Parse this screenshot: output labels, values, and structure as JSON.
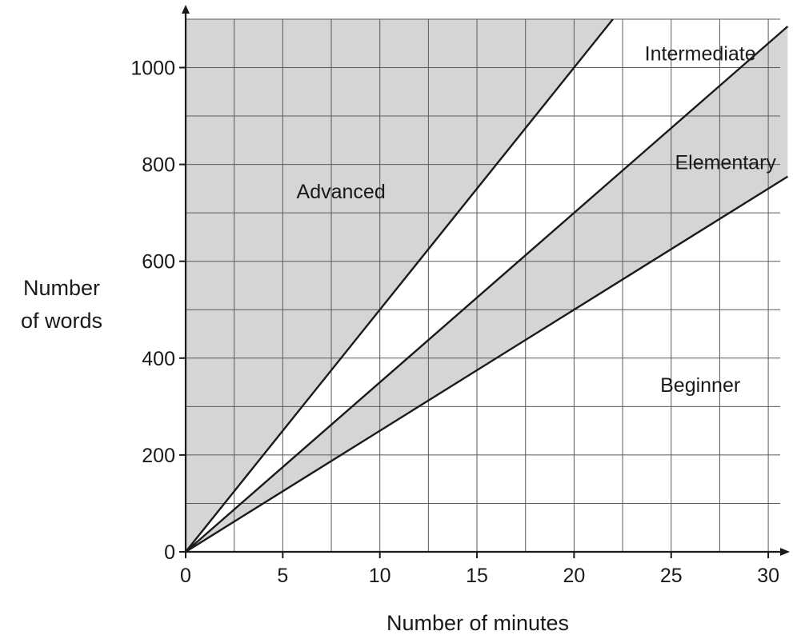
{
  "chart_data": {
    "type": "line",
    "title": "",
    "xlabel": "Number of minutes",
    "ylabel_lines": [
      "Number",
      "of words"
    ],
    "xlim": [
      0,
      31
    ],
    "ylim": [
      0,
      1100
    ],
    "x_ticks": [
      0,
      5,
      10,
      15,
      20,
      25,
      30
    ],
    "y_ticks": [
      0,
      200,
      400,
      600,
      800,
      1000
    ],
    "x_minor_step": 2.5,
    "y_minor_step": 100,
    "grid": true,
    "series": [
      {
        "x": [
          0,
          22
        ],
        "y": [
          0,
          1100
        ]
      },
      {
        "x": [
          0,
          31
        ],
        "y": [
          0,
          1085
        ]
      },
      {
        "x": [
          0,
          31
        ],
        "y": [
          0,
          775
        ]
      }
    ],
    "regions": [
      {
        "label": "Advanced",
        "shaded": true,
        "label_at": [
          8,
          745
        ]
      },
      {
        "label": "Intermediate",
        "shaded": false,
        "label_at": [
          26.5,
          1030
        ]
      },
      {
        "label": "Elementary",
        "shaded": true,
        "label_at": [
          27.8,
          805
        ]
      },
      {
        "label": "Beginner",
        "shaded": false,
        "label_at": [
          26.5,
          345
        ]
      }
    ],
    "colors": {
      "shade": "#d4d5d7",
      "line": "#1a1a1a",
      "grid": "#5a5a5a"
    }
  }
}
